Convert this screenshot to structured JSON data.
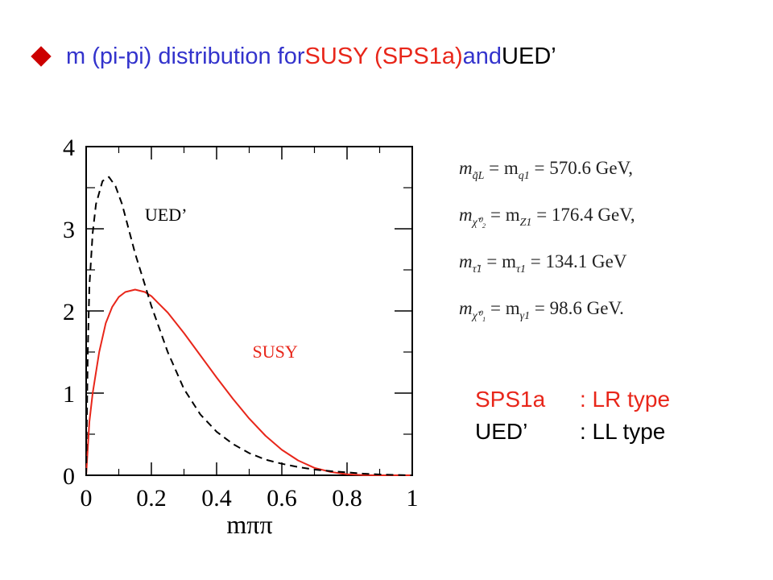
{
  "title": {
    "segments": [
      {
        "text": "m (pi-pi) distribution for ",
        "color": "#3333cc"
      },
      {
        "text": "SUSY (SPS1a)",
        "color": "#e8261a"
      },
      {
        "text": " and ",
        "color": "#3333cc"
      },
      {
        "text": "UED’",
        "color": "#000000"
      }
    ]
  },
  "chart_data": {
    "type": "line",
    "xlabel": "mππ",
    "ylabel": "",
    "xlim": [
      0,
      1
    ],
    "ylim": [
      0,
      4
    ],
    "x_ticks": [
      "0",
      "0.2",
      "0.4",
      "0.6",
      "0.8",
      "1"
    ],
    "y_ticks": [
      "0",
      "1",
      "2",
      "3",
      "4"
    ],
    "grid": false,
    "series": [
      {
        "name": "SUSY",
        "color": "#e8261a",
        "style": "solid",
        "x": [
          0,
          0.01,
          0.02,
          0.04,
          0.06,
          0.08,
          0.1,
          0.12,
          0.15,
          0.18,
          0.2,
          0.22,
          0.25,
          0.3,
          0.35,
          0.4,
          0.45,
          0.5,
          0.55,
          0.6,
          0.65,
          0.7,
          0.75,
          0.8,
          0.85,
          0.9,
          0.95,
          1.0
        ],
        "values": [
          0,
          0.65,
          1.0,
          1.5,
          1.85,
          2.05,
          2.17,
          2.23,
          2.26,
          2.23,
          2.18,
          2.1,
          1.98,
          1.73,
          1.46,
          1.19,
          0.93,
          0.69,
          0.48,
          0.31,
          0.18,
          0.09,
          0.04,
          0.012,
          0.003,
          0.0,
          0.0,
          0.0
        ]
      },
      {
        "name": "UED’",
        "color": "#000000",
        "style": "dashed",
        "x": [
          0,
          0.005,
          0.01,
          0.02,
          0.03,
          0.05,
          0.07,
          0.09,
          0.11,
          0.13,
          0.15,
          0.18,
          0.2,
          0.25,
          0.3,
          0.35,
          0.4,
          0.45,
          0.5,
          0.55,
          0.6,
          0.65,
          0.7,
          0.75,
          0.8,
          0.85,
          0.9,
          0.95,
          1.0
        ],
        "values": [
          0,
          1.5,
          2.3,
          2.95,
          3.3,
          3.58,
          3.63,
          3.52,
          3.3,
          3.0,
          2.7,
          2.32,
          2.06,
          1.5,
          1.05,
          0.74,
          0.53,
          0.38,
          0.27,
          0.19,
          0.14,
          0.1,
          0.07,
          0.05,
          0.035,
          0.02,
          0.01,
          0.004,
          0.0
        ]
      }
    ],
    "annotations": [
      {
        "text": "UED’",
        "color": "#000000",
        "at": [
          0.18,
          3.1
        ]
      },
      {
        "text": "SUSY",
        "color": "#e8261a",
        "at": [
          0.51,
          1.43
        ]
      }
    ]
  },
  "equations": [
    {
      "lhs": "m",
      "lhs_sub": "q̃L",
      "mid": "= m",
      "mid_sub": "q1",
      "rhs": "= 570.6 GeV,"
    },
    {
      "lhs": "m",
      "lhs_sub": "χ̃⁰₂",
      "mid": "= m",
      "mid_sub": "Z1",
      "rhs": "= 176.4 GeV,"
    },
    {
      "lhs": "m",
      "lhs_sub": "τ̃1",
      "mid": "= m",
      "mid_sub": "τ1",
      "rhs": "= 134.1 GeV"
    },
    {
      "lhs": "m",
      "lhs_sub": "χ̃⁰₁",
      "mid": "= m",
      "mid_sub": "γ1",
      "rhs": "= 98.6 GeV."
    }
  ],
  "notes": {
    "color_sps": "#e8261a",
    "color_ued": "#000000",
    "sps_name": "SPS1a",
    "sps_type": ": LR type",
    "ued_name": "UED’",
    "ued_type": ": LL type"
  }
}
